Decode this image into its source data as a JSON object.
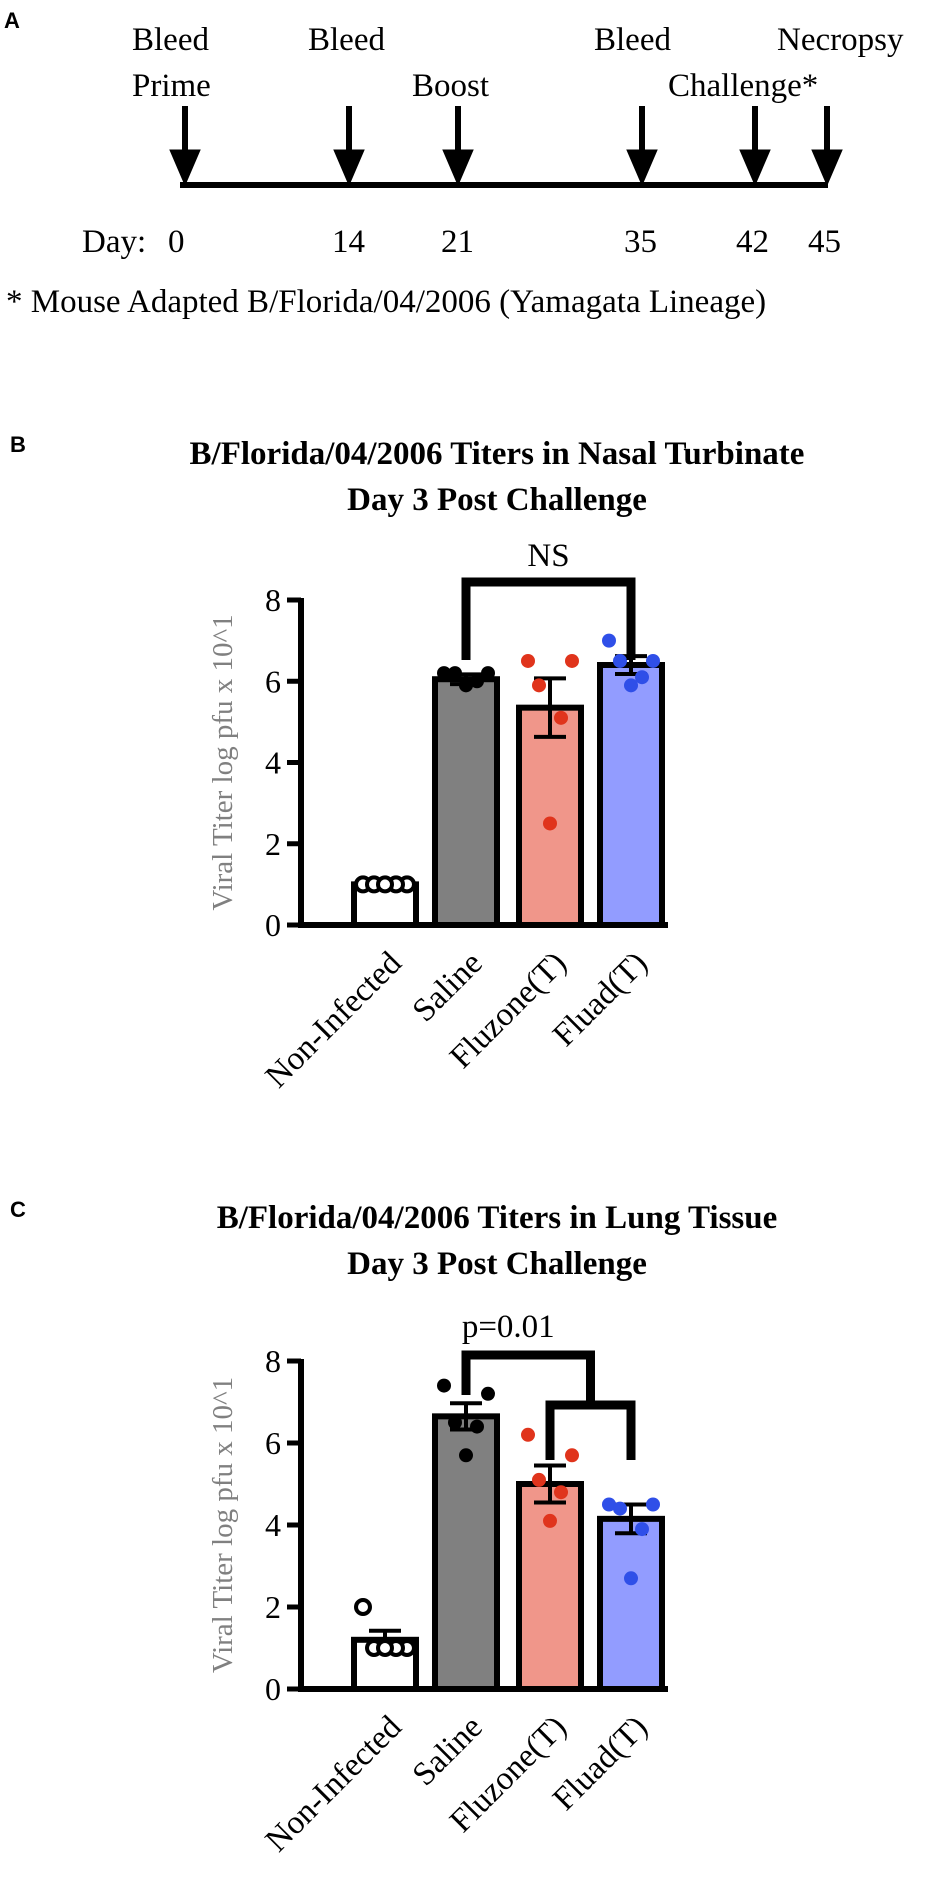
{
  "panels": {
    "a": {
      "letter": "A",
      "events": [
        {
          "day": 0,
          "labels": [
            "Bleed",
            "Prime"
          ]
        },
        {
          "day": 14,
          "labels": [
            "Bleed"
          ]
        },
        {
          "day": 21,
          "labels": [
            "Boost"
          ]
        },
        {
          "day": 35,
          "labels": [
            "Bleed"
          ]
        },
        {
          "day": 42,
          "labels": [
            "Challenge*"
          ]
        },
        {
          "day": 45,
          "labels": [
            "Necropsy"
          ]
        }
      ],
      "day_label": "Day:",
      "footnote": "* Mouse Adapted B/Florida/04/2006 (Yamagata Lineage)"
    },
    "b": {
      "letter": "B"
    },
    "c": {
      "letter": "C"
    }
  },
  "colors": {
    "non_infected": "#ffffff",
    "saline": "#808080",
    "fluzone": "#f0968a",
    "fluad": "#929cff",
    "saline_points": "#000000",
    "fluzone_points": "#e0341c",
    "fluad_points": "#2f4fe8",
    "axis": "#000000"
  },
  "chart_data": [
    {
      "type": "bar",
      "title": "B/Florida/04/2006 Titers in Nasal Turbinate",
      "subtitle": "Day 3 Post Challenge",
      "xlabel": "",
      "ylabel": "Viral Titer  log pfu x 10^1",
      "ylim": [
        0,
        8
      ],
      "yticks": [
        0,
        2,
        4,
        6,
        8
      ],
      "categories": [
        "Non-Infected",
        "Saline",
        "Fluzone(T)",
        "Fluad(T)"
      ],
      "values": [
        1.0,
        6.05,
        5.35,
        6.4
      ],
      "sem": [
        0,
        0.12,
        0.72,
        0.22
      ],
      "points": [
        [
          1,
          1,
          1,
          1,
          1
        ],
        [
          6.2,
          6.2,
          6.2,
          6.0,
          5.9
        ],
        [
          6.5,
          6.5,
          5.9,
          5.1,
          2.5
        ],
        [
          7.0,
          6.5,
          6.5,
          6.1,
          5.9
        ]
      ],
      "annotation": {
        "text": "NS",
        "from": "Saline",
        "to": "Fluad(T)"
      }
    },
    {
      "type": "bar",
      "title": "B/Florida/04/2006 Titers in Lung Tissue",
      "subtitle": "Day 3 Post Challenge",
      "xlabel": "",
      "ylabel": "Viral Titer  log pfu x 10^1",
      "ylim": [
        0,
        8
      ],
      "yticks": [
        0,
        2,
        4,
        6,
        8
      ],
      "categories": [
        "Non-Infected",
        "Saline",
        "Fluzone(T)",
        "Fluad(T)"
      ],
      "values": [
        1.2,
        6.65,
        5.0,
        4.15
      ],
      "sem": [
        0.22,
        0.32,
        0.45,
        0.35
      ],
      "points": [
        [
          2.0,
          1.0,
          1.0,
          1.0,
          1.0
        ],
        [
          7.4,
          7.2,
          6.5,
          6.4,
          5.7
        ],
        [
          6.2,
          5.7,
          5.1,
          4.8,
          4.1
        ],
        [
          4.5,
          4.5,
          4.4,
          3.9,
          2.7
        ]
      ],
      "annotation": {
        "text": "p=0.01",
        "from": "Saline",
        "to_group": [
          "Fluzone(T)",
          "Fluad(T)"
        ]
      }
    }
  ]
}
